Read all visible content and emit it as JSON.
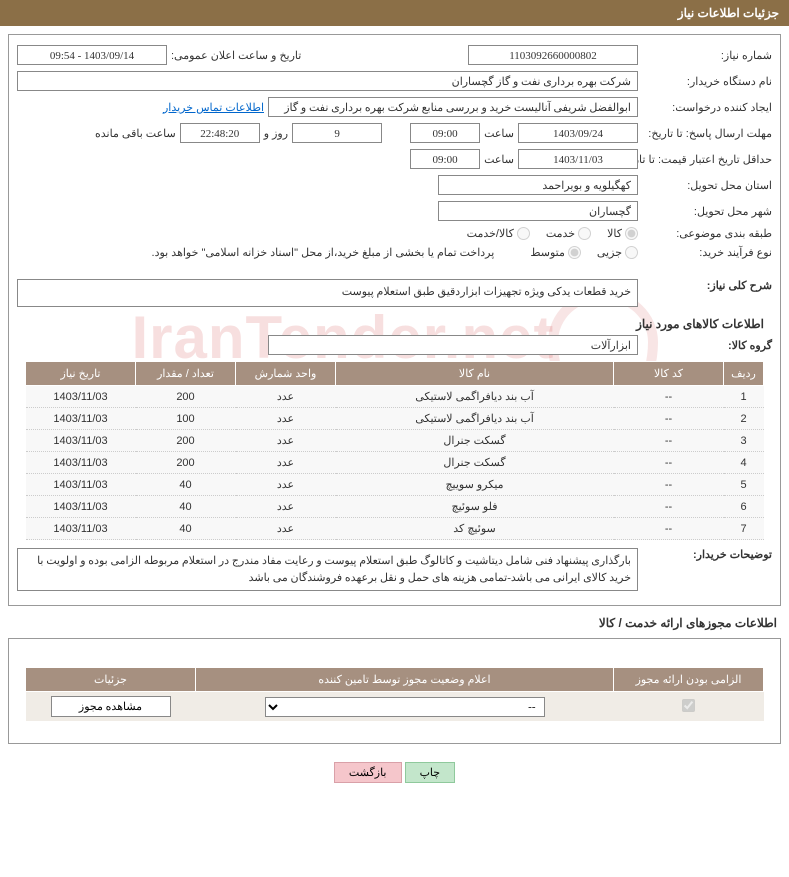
{
  "header": {
    "title": "جزئیات اطلاعات نیاز"
  },
  "fields": {
    "needNumber": {
      "label": "شماره نیاز:",
      "value": "1103092660000802"
    },
    "announceDate": {
      "label": "تاریخ و ساعت اعلان عمومی:",
      "value": "1403/09/14 - 09:54"
    },
    "buyerOrg": {
      "label": "نام دستگاه خریدار:",
      "value": "شرکت بهره برداری نفت و گاز گچساران"
    },
    "requester": {
      "label": "ایجاد کننده درخواست:",
      "value": "ابوالفضل شریفی آنالیست خرید و بررسی منابع شرکت بهره برداری نفت و گاز گچ",
      "link": "اطلاعات تماس خریدار"
    },
    "deadline": {
      "label": "مهلت ارسال پاسخ: تا تاریخ:",
      "date": "1403/09/24",
      "timeLabel": "ساعت",
      "time": "09:00",
      "days": "9",
      "daysLabel": "روز و",
      "duration": "22:48:20",
      "remainLabel": "ساعت باقی مانده"
    },
    "validity": {
      "label": "حداقل تاریخ اعتبار قیمت: تا تاریخ:",
      "date": "1403/11/03",
      "timeLabel": "ساعت",
      "time": "09:00"
    },
    "province": {
      "label": "استان محل تحویل:",
      "value": "کهگیلویه و بویراحمد"
    },
    "city": {
      "label": "شهر محل تحویل:",
      "value": "گچساران"
    },
    "category": {
      "label": "طبقه بندی موضوعی:",
      "options": [
        "کالا",
        "خدمت",
        "کالا/خدمت"
      ],
      "selected": 0
    },
    "procType": {
      "label": "نوع فرآیند خرید:",
      "options": [
        "جزیی",
        "متوسط"
      ],
      "selected": 1,
      "note": "پرداخت تمام یا بخشی از مبلغ خرید،از محل \"اسناد خزانه اسلامی\" خواهد بود."
    },
    "needDesc": {
      "label": "شرح کلی نیاز:",
      "value": "خرید قطعات یدکی ویژه تجهیزات ابزاردقیق طبق استعلام پیوست"
    },
    "goodsInfoTitle": "اطلاعات کالاهای مورد نیاز",
    "goodsGroup": {
      "label": "گروه کالا:",
      "value": "ابزارآلات"
    },
    "buyerNotes": {
      "label": "توضیحات خریدار:",
      "value": "بارگذاری پیشنهاد فنی شامل دیتاشیت و کاتالوگ طبق استعلام پیوست و رعایت مفاد مندرج در استعلام مربوطه الزامی بوده و اولویت با خرید کالای ایرانی می باشد-تمامی هزینه های حمل و نقل برعهده فروشندگان می باشد"
    }
  },
  "goodsTable": {
    "headers": [
      "ردیف",
      "کد کالا",
      "نام کالا",
      "واحد شمارش",
      "تعداد / مقدار",
      "تاریخ نیاز"
    ],
    "rows": [
      [
        "1",
        "--",
        "آب بند دیافراگمی لاستیکی",
        "عدد",
        "200",
        "1403/11/03"
      ],
      [
        "2",
        "--",
        "آب بند دیافراگمی لاستیکی",
        "عدد",
        "100",
        "1403/11/03"
      ],
      [
        "3",
        "--",
        "گسکت جنرال",
        "عدد",
        "200",
        "1403/11/03"
      ],
      [
        "4",
        "--",
        "گسکت جنرال",
        "عدد",
        "200",
        "1403/11/03"
      ],
      [
        "5",
        "--",
        "میکرو سوییچ",
        "عدد",
        "40",
        "1403/11/03"
      ],
      [
        "6",
        "--",
        "فلو سوئیچ",
        "عدد",
        "40",
        "1403/11/03"
      ],
      [
        "7",
        "--",
        "سوئیچ کد",
        "عدد",
        "40",
        "1403/11/03"
      ]
    ],
    "colWidths": [
      "40px",
      "110px",
      "auto",
      "100px",
      "100px",
      "110px"
    ]
  },
  "permitSection": {
    "title": "اطلاعات مجوزهای ارائه خدمت / کالا",
    "headers": [
      "الزامی بودن ارائه مجوز",
      "اعلام وضعیت مجوز توسط تامین کننده",
      "جزئیات"
    ],
    "selectValue": "--",
    "detailBtn": "مشاهده مجوز",
    "mandatoryChecked": true
  },
  "buttons": {
    "print": "چاپ",
    "back": "بازگشت"
  },
  "watermark": "IranTender.net",
  "colors": {
    "headerBg": "#8b6f47",
    "tableHeaderBg": "#a69080",
    "border": "#999999"
  }
}
